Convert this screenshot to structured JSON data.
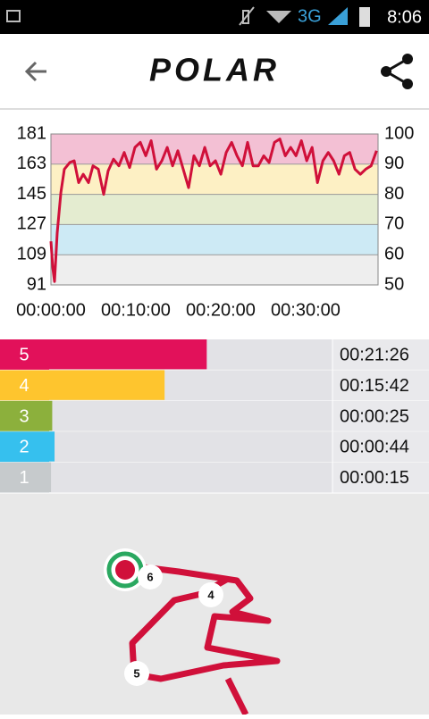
{
  "status_bar": {
    "network": "3G",
    "time": "8:06"
  },
  "header": {
    "logo": "POLAR"
  },
  "chart_data": {
    "type": "line",
    "x": [
      0,
      13,
      25,
      44,
      70,
      95,
      133,
      164,
      196,
      228,
      265,
      297,
      335,
      373,
      404,
      442,
      480,
      518,
      556,
      594,
      632,
      670,
      708,
      746,
      784,
      822,
      860,
      897,
      935,
      973,
      1011,
      1049,
      1087,
      1125,
      1163,
      1201,
      1239,
      1277,
      1315,
      1353,
      1390,
      1428,
      1466,
      1504,
      1542,
      1580,
      1618,
      1656,
      1694,
      1732,
      1770,
      1808,
      1846,
      1884,
      1922,
      1960,
      1998,
      2036,
      2074,
      2112,
      2149,
      2187,
      2225,
      2263,
      2301
    ],
    "series": [
      {
        "color": "#d0103a",
        "values": [
          117,
          101,
          93,
          122,
          146,
          160,
          164,
          165,
          152,
          157,
          152,
          162,
          160,
          145,
          159,
          166,
          162,
          170,
          161,
          173,
          176,
          168,
          177,
          160,
          165,
          173,
          162,
          171,
          160,
          149,
          168,
          162,
          173,
          162,
          165,
          157,
          170,
          176,
          168,
          162,
          176,
          162,
          162,
          168,
          164,
          176,
          178,
          168,
          173,
          168,
          177,
          165,
          173,
          152,
          165,
          170,
          165,
          157,
          168,
          170,
          160,
          157,
          160,
          162,
          171
        ]
      }
    ],
    "xlim": [
      0,
      2312
    ],
    "xticks": [
      {
        "value": 0,
        "label": "00:00:00"
      },
      {
        "value": 600,
        "label": "00:10:00"
      },
      {
        "value": 1200,
        "label": "00:20:00"
      },
      {
        "value": 1800,
        "label": "00:30:00"
      }
    ],
    "ylim": [
      91,
      181
    ],
    "yticks": [
      91,
      109,
      127,
      145,
      163,
      181
    ],
    "y2lim": [
      50,
      100
    ],
    "y2ticks": [
      50,
      60,
      70,
      80,
      90,
      100
    ],
    "band_colors": [
      "#eeeeee",
      "#cdeaf5",
      "#e4ecd0",
      "#fdf0c4",
      "#f3c0d4"
    ]
  },
  "zones": {
    "labels": [
      "5",
      "4",
      "3",
      "2",
      "1"
    ],
    "colors": [
      "#e2115a",
      "#fec52e",
      "#8cb03c",
      "#36c0ee",
      "#c6cacc"
    ],
    "values": [
      1286,
      942,
      25,
      44,
      15
    ],
    "value_labels": [
      "00:21:26",
      "00:15:42",
      "00:00:25",
      "00:00:44",
      "00:00:15"
    ]
  },
  "map": {
    "markers": [
      "6",
      "4",
      "5"
    ]
  }
}
